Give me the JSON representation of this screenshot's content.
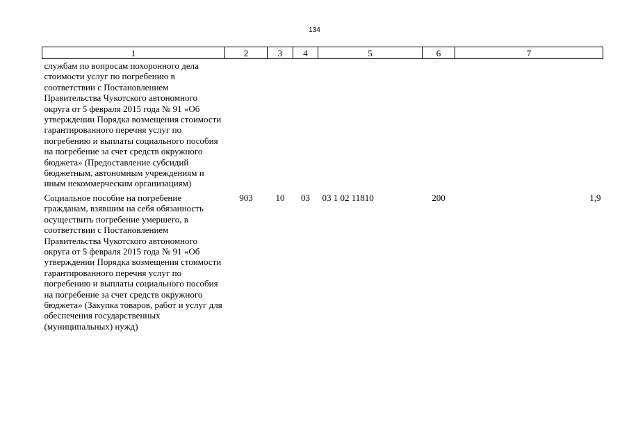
{
  "page": {
    "number": "134"
  },
  "table": {
    "headers": [
      "1",
      "2",
      "3",
      "4",
      "5",
      "6",
      "7"
    ],
    "rows": [
      {
        "name": "службам по вопросам похоронного дела стоимости услуг по погребению в соответствии с Постановлением Правительства Чукотского автономного округа от 5 февраля 2015 года № 91 «Об утверждении Порядка возмещения стоимости гарантированного перечня услуг по погребению и выплаты социального пособия на погребение за счет средств окружного бюджета» (Предоставление субсидий бюджетным, автономным учреждениям и иным некоммерческим организациям)",
        "ministry": "",
        "section": "",
        "subsection": "",
        "target": "",
        "expense_type": "",
        "amount": ""
      },
      {
        "name": "Социальное пособие на погребение гражданам, взявшим на себя обязанность осуществить погребение умершего, в соответствии с Постановлением Правительства Чукотского автономного округа от 5 февраля 2015 года № 91 «Об утверждении Порядка возмещения стоимости гарантированного перечня услуг по погребению и выплаты социального пособия на погребение за счет средств окружного бюджета» (Закупка товаров, работ и услуг для обеспечения государственных (муниципальных) нужд)",
        "ministry": "903",
        "section": "10",
        "subsection": "03",
        "target": "03 1 02 11810",
        "expense_type": "200",
        "amount": "1,9"
      }
    ]
  }
}
